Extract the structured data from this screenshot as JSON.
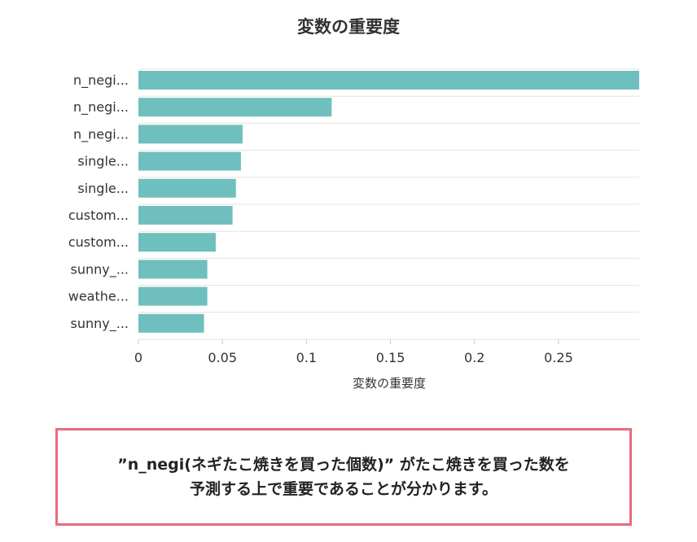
{
  "chart_data": {
    "type": "bar",
    "orientation": "horizontal",
    "title": "変数の重要度",
    "xlabel": "変数の重要度",
    "ylabel": "",
    "categories": [
      "n_negi...",
      "n_negi...",
      "n_negi...",
      "single...",
      "single...",
      "custom...",
      "custom...",
      "sunny_...",
      "weathe...",
      "sunny_..."
    ],
    "values": [
      0.298,
      0.115,
      0.062,
      0.061,
      0.058,
      0.056,
      0.046,
      0.041,
      0.041,
      0.039
    ],
    "xlim": [
      0,
      0.298
    ],
    "xticks": [
      0,
      0.05,
      0.1,
      0.15,
      0.2,
      0.25
    ],
    "xtick_labels": [
      "0",
      "0.05",
      "0.1",
      "0.15",
      "0.2",
      "0.25"
    ],
    "grid": true,
    "bar_color": "#6fbfbe"
  },
  "note": {
    "line1": "”n_negi(ネギたこ焼きを買った個数)” がたこ焼きを買った数を",
    "line2": "予測する上で重要であることが分かります。",
    "border_color": "#ea6b7e"
  }
}
